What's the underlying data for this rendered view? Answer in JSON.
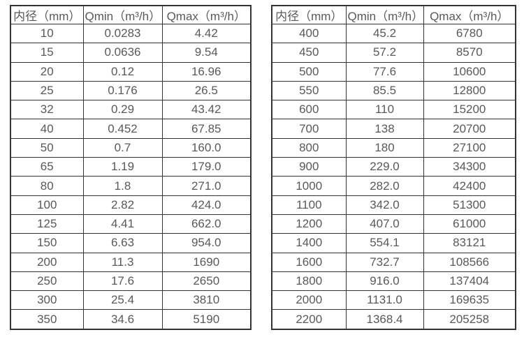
{
  "colors": {
    "background": "#ffffff",
    "border": "#333333",
    "text": "#595959"
  },
  "tables": [
    {
      "name": "flow-rate-table-small-diameters",
      "headers": [
        "内径（mm）",
        "Qmin（m³/h）",
        "Qmax（m³/h）"
      ],
      "rows": [
        [
          "10",
          "0.0283",
          "4.42"
        ],
        [
          "15",
          "0.0636",
          "9.54"
        ],
        [
          "20",
          "0.12",
          "16.96"
        ],
        [
          "25",
          "0.176",
          "26.5"
        ],
        [
          "32",
          "0.29",
          "43.42"
        ],
        [
          "40",
          "0.452",
          "67.85"
        ],
        [
          "50",
          "0.7",
          "160.0"
        ],
        [
          "65",
          "1.19",
          "179.0"
        ],
        [
          "80",
          "1.8",
          "271.0"
        ],
        [
          "100",
          "2.82",
          "424.0"
        ],
        [
          "125",
          "4.41",
          "662.0"
        ],
        [
          "150",
          "6.63",
          "954.0"
        ],
        [
          "200",
          "11.3",
          "1690"
        ],
        [
          "250",
          "17.6",
          "2650"
        ],
        [
          "300",
          "25.4",
          "3810"
        ],
        [
          "350",
          "34.6",
          "5190"
        ]
      ]
    },
    {
      "name": "flow-rate-table-large-diameters",
      "headers": [
        "内径（mm）",
        "Qmin（m³/h）",
        "Qmax（m³/h）"
      ],
      "rows": [
        [
          "400",
          "45.2",
          "6780"
        ],
        [
          "450",
          "57.2",
          "8570"
        ],
        [
          "500",
          "77.6",
          "10600"
        ],
        [
          "550",
          "85.5",
          "12800"
        ],
        [
          "600",
          "110",
          "15200"
        ],
        [
          "700",
          "138",
          "20700"
        ],
        [
          "800",
          "180",
          "27100"
        ],
        [
          "900",
          "229.0",
          "34300"
        ],
        [
          "1000",
          "282.0",
          "42400"
        ],
        [
          "1100",
          "342.0",
          "51300"
        ],
        [
          "1200",
          "407.0",
          "61000"
        ],
        [
          "1400",
          "554.1",
          "83121"
        ],
        [
          "1600",
          "732.7",
          "108566"
        ],
        [
          "1800",
          "916.0",
          "137404"
        ],
        [
          "2000",
          "1131.0",
          "169635"
        ],
        [
          "2200",
          "1368.4",
          "205258"
        ]
      ]
    }
  ]
}
